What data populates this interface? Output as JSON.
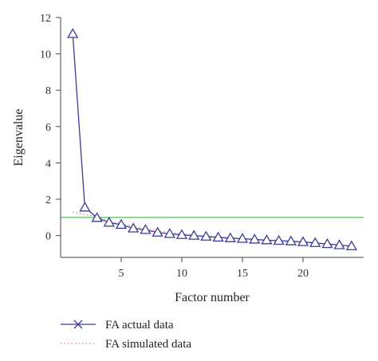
{
  "chart_data": {
    "type": "scatter",
    "xlabel": "Factor number",
    "ylabel": "Eigenvalue",
    "xlim": [
      0,
      25
    ],
    "ylim": [
      -1.2,
      12
    ],
    "x_ticks": [
      5,
      10,
      15,
      20
    ],
    "y_ticks": [
      0,
      2,
      4,
      6,
      8,
      10,
      12
    ],
    "reference_line": {
      "y": 1,
      "color": "#4caf50"
    },
    "series": [
      {
        "name": "FA actual data",
        "color": "#3b3b9a",
        "marker": "triangle",
        "x": [
          1,
          2,
          3,
          4,
          5,
          6,
          7,
          8,
          9,
          10,
          11,
          12,
          13,
          14,
          15,
          16,
          17,
          18,
          19,
          20,
          21,
          22,
          23,
          24
        ],
        "values": [
          11.1,
          1.55,
          0.98,
          0.72,
          0.6,
          0.4,
          0.32,
          0.17,
          0.1,
          0.04,
          0.0,
          -0.05,
          -0.1,
          -0.14,
          -0.17,
          -0.21,
          -0.25,
          -0.28,
          -0.31,
          -0.35,
          -0.4,
          -0.46,
          -0.52,
          -0.58
        ]
      },
      {
        "name": "FA simulated data",
        "color": "#d98080",
        "marker": "none",
        "x": [
          1,
          2,
          3,
          4,
          5,
          6,
          7,
          8,
          9,
          10,
          11,
          12,
          13,
          14,
          15,
          16,
          17,
          18,
          19,
          20,
          21,
          22,
          23,
          24
        ],
        "values": [
          1.3,
          1.15,
          1.05,
          0.8,
          0.66,
          0.5,
          0.38,
          0.27,
          0.18,
          0.1,
          0.03,
          -0.03,
          -0.08,
          -0.13,
          -0.18,
          -0.22,
          -0.26,
          -0.3,
          -0.34,
          -0.38,
          -0.43,
          -0.48,
          -0.54,
          -0.6
        ]
      }
    ],
    "legend": {
      "position": "bottom-left",
      "entries": [
        "FA actual data",
        "FA simulated data"
      ]
    }
  }
}
